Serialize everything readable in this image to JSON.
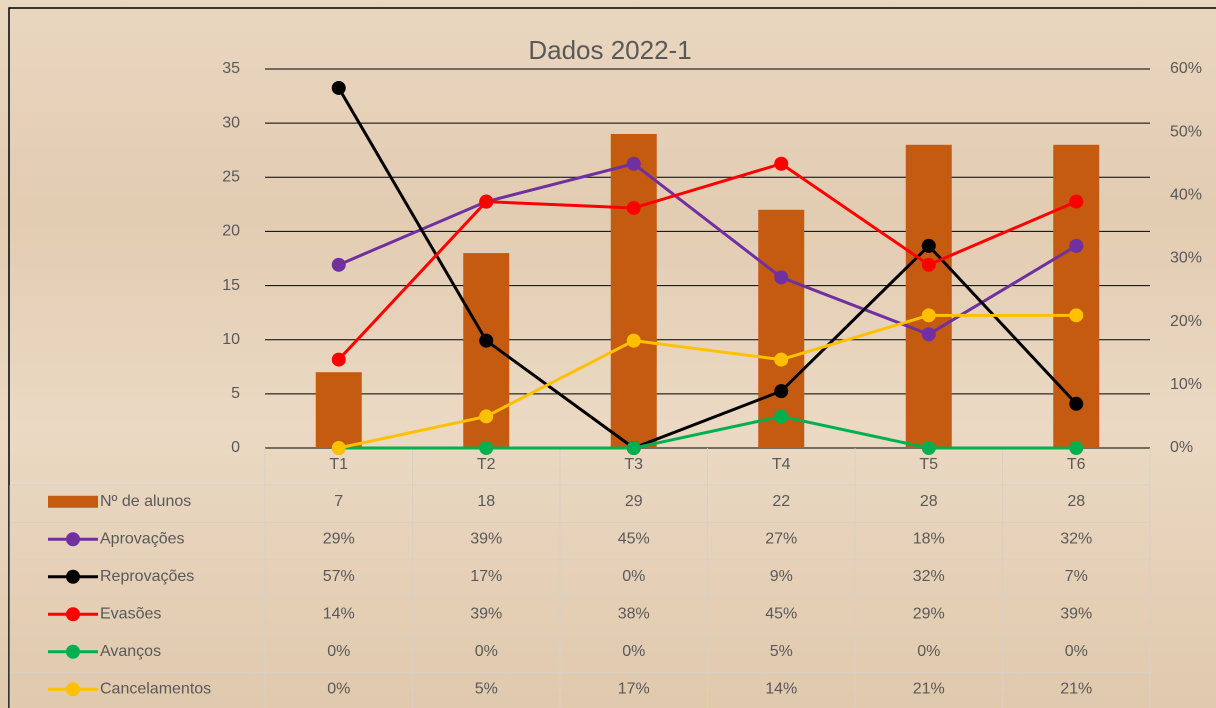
{
  "chart_data": {
    "type": "bar",
    "title": "Dados 2022-1",
    "categories": [
      "T1",
      "T2",
      "T3",
      "T4",
      "T5",
      "T6"
    ],
    "ylim": [
      0,
      35
    ],
    "yticks": [
      0,
      5,
      10,
      15,
      20,
      25,
      30,
      35
    ],
    "y2lim": [
      0,
      60
    ],
    "y2ticks": [
      {
        "value": 0,
        "label": "0%"
      },
      {
        "value": 10,
        "label": "10%"
      },
      {
        "value": 20,
        "label": "20%"
      },
      {
        "value": 30,
        "label": "30%"
      },
      {
        "value": 40,
        "label": "40%"
      },
      {
        "value": 50,
        "label": "50%"
      },
      {
        "value": 60,
        "label": "60%"
      }
    ],
    "grid": true,
    "series": [
      {
        "name": "Nº de alunos",
        "color": "#c55a11",
        "values": [
          7,
          18,
          29,
          22,
          28,
          28
        ]
      },
      {
        "name": "Aprovações",
        "color": "#7030a0",
        "type": "line",
        "axis": "y2",
        "values": [
          29,
          39,
          45,
          27,
          18,
          32
        ],
        "value_labels": [
          "29%",
          "39%",
          "45%",
          "27%",
          "18%",
          "32%"
        ]
      },
      {
        "name": "Reprovações",
        "color": "#000000",
        "type": "line",
        "axis": "y2",
        "values": [
          57,
          17,
          0,
          9,
          32,
          7
        ],
        "value_labels": [
          "57%",
          "17%",
          "0%",
          "9%",
          "32%",
          "7%"
        ]
      },
      {
        "name": "Evasões",
        "color": "#ff0000",
        "type": "line",
        "axis": "y2",
        "values": [
          14,
          39,
          38,
          45,
          29,
          39
        ],
        "value_labels": [
          "14%",
          "39%",
          "38%",
          "45%",
          "29%",
          "39%"
        ]
      },
      {
        "name": "Avanços",
        "color": "#00b050",
        "type": "line",
        "axis": "y2",
        "values": [
          0,
          0,
          0,
          5,
          0,
          0
        ],
        "value_labels": [
          "0%",
          "0%",
          "0%",
          "5%",
          "0%",
          "0%"
        ]
      },
      {
        "name": "Cancelamentos",
        "color": "#ffc000",
        "type": "line",
        "axis": "y2",
        "values": [
          0,
          5,
          17,
          14,
          21,
          21
        ],
        "value_labels": [
          "0%",
          "5%",
          "17%",
          "14%",
          "21%",
          "21%"
        ]
      }
    ]
  }
}
